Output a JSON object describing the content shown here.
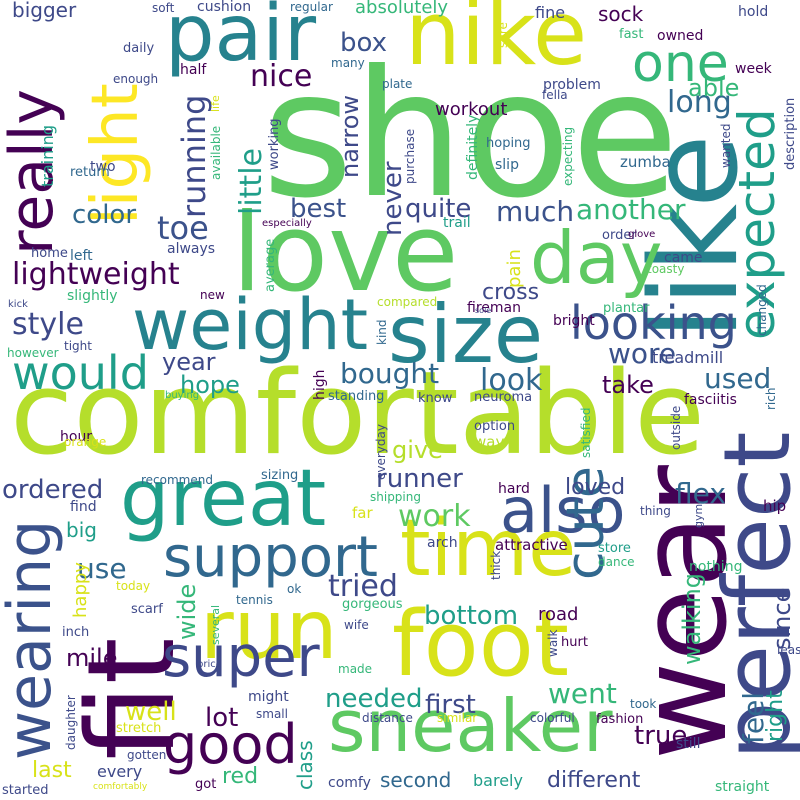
{
  "palette": {
    "dark_purple": "#440154",
    "indigo": "#3b528b",
    "teal": "#21918c",
    "green": "#5ec962",
    "lime": "#addc30",
    "yellow": "#fde725"
  },
  "words": [
    {
      "text": "shoe",
      "color": "#5ec962",
      "weight": 1.0
    },
    {
      "text": "comfortable",
      "color": "#b5de2b",
      "weight": 0.95
    },
    {
      "text": "love",
      "color": "#5ec962",
      "weight": 0.85
    },
    {
      "text": "fit",
      "color": "#440154",
      "weight": 0.8
    },
    {
      "text": "wear",
      "color": "#440154",
      "weight": 0.8
    },
    {
      "text": "like",
      "color": "#26828e",
      "weight": 0.75
    },
    {
      "text": "nike",
      "color": "#d8e219",
      "weight": 0.7
    },
    {
      "text": "pair",
      "color": "#26828e",
      "weight": 0.65
    },
    {
      "text": "run",
      "color": "#d8e219",
      "weight": 0.65
    },
    {
      "text": "foot",
      "color": "#d8e219",
      "weight": 0.65
    },
    {
      "text": "great",
      "color": "#1f9e89",
      "weight": 0.62
    },
    {
      "text": "time",
      "color": "#d8e219",
      "weight": 0.6
    },
    {
      "text": "size",
      "color": "#26828e",
      "weight": 0.6
    },
    {
      "text": "weight",
      "color": "#26828e",
      "weight": 0.58
    },
    {
      "text": "sneaker",
      "color": "#5ec962",
      "weight": 0.6
    },
    {
      "text": "perfect",
      "color": "#3e4989",
      "weight": 0.55
    },
    {
      "text": "light",
      "color": "#fde725",
      "weight": 0.55
    },
    {
      "text": "day",
      "color": "#5ec962",
      "weight": 0.55
    },
    {
      "text": "really",
      "color": "#440154",
      "weight": 0.5
    },
    {
      "text": "wearing",
      "color": "#3b528b",
      "weight": 0.5
    },
    {
      "text": "support",
      "color": "#31688e",
      "weight": 0.48
    },
    {
      "text": "super",
      "color": "#3e4989",
      "weight": 0.48
    },
    {
      "text": "good",
      "color": "#440154",
      "weight": 0.45
    },
    {
      "text": "also",
      "color": "#3b528b",
      "weight": 0.45
    },
    {
      "text": "expected",
      "color": "#1f9e89",
      "weight": 0.45
    },
    {
      "text": "cute",
      "color": "#31688e",
      "weight": 0.42
    },
    {
      "text": "one",
      "color": "#35b779",
      "weight": 0.4
    },
    {
      "text": "looking",
      "color": "#3b528b",
      "weight": 0.4
    },
    {
      "text": "would",
      "color": "#1f9e89",
      "weight": 0.38
    },
    {
      "text": "feel",
      "color": "#31688e",
      "weight": 0.3
    },
    {
      "text": "lightweight",
      "color": "#440154",
      "weight": 0.3
    },
    {
      "text": "little",
      "color": "#1f9e89",
      "weight": 0.3
    },
    {
      "text": "running",
      "color": "#3e4989",
      "weight": 0.3
    },
    {
      "text": "nice",
      "color": "#440154",
      "weight": 0.28
    },
    {
      "text": "much",
      "color": "#3b528b",
      "weight": 0.28
    },
    {
      "text": "another",
      "color": "#35b779",
      "weight": 0.28
    },
    {
      "text": "long",
      "color": "#31688e",
      "weight": 0.28
    },
    {
      "text": "box",
      "color": "#3b528b",
      "weight": 0.26
    },
    {
      "text": "toe",
      "color": "#3b528b",
      "weight": 0.26
    },
    {
      "text": "style",
      "color": "#3e4989",
      "weight": 0.26
    },
    {
      "text": "look",
      "color": "#31688e",
      "weight": 0.26
    },
    {
      "text": "bought",
      "color": "#31688e",
      "weight": 0.26
    },
    {
      "text": "wore",
      "color": "#3b528b",
      "weight": 0.26
    },
    {
      "text": "used",
      "color": "#31688e",
      "weight": 0.26
    },
    {
      "text": "best",
      "color": "#3b528b",
      "weight": 0.24
    },
    {
      "text": "never",
      "color": "#3e4989",
      "weight": 0.24
    },
    {
      "text": "quite",
      "color": "#3e4989",
      "weight": 0.24
    },
    {
      "text": "color",
      "color": "#31688e",
      "weight": 0.24
    },
    {
      "text": "narrow",
      "color": "#3e4989",
      "weight": 0.22
    },
    {
      "text": "cross",
      "color": "#3e4989",
      "weight": 0.22
    },
    {
      "text": "able",
      "color": "#35b779",
      "weight": 0.22
    },
    {
      "text": "take",
      "color": "#440154",
      "weight": 0.22
    },
    {
      "text": "year",
      "color": "#3e4989",
      "weight": 0.22
    },
    {
      "text": "hope",
      "color": "#1f9e89",
      "weight": 0.22
    },
    {
      "text": "runner",
      "color": "#3e4989",
      "weight": 0.22
    },
    {
      "text": "work",
      "color": "#5ec962",
      "weight": 0.24
    },
    {
      "text": "flex",
      "color": "#31688e",
      "weight": 0.22
    },
    {
      "text": "ordered",
      "color": "#3e4989",
      "weight": 0.22
    },
    {
      "text": "loved",
      "color": "#3e4989",
      "weight": 0.2
    },
    {
      "text": "give",
      "color": "#b5de2b",
      "weight": 0.2
    },
    {
      "text": "tried",
      "color": "#3e4989",
      "weight": 0.22
    },
    {
      "text": "use",
      "color": "#31688e",
      "weight": 0.22
    },
    {
      "text": "wide",
      "color": "#35b779",
      "weight": 0.2
    },
    {
      "text": "walking",
      "color": "#35b779",
      "weight": 0.22
    },
    {
      "text": "since",
      "color": "#3e4989",
      "weight": 0.22
    },
    {
      "text": "mile",
      "color": "#440154",
      "weight": 0.2
    },
    {
      "text": "bottom",
      "color": "#1f9e89",
      "weight": 0.22
    },
    {
      "text": "needed",
      "color": "#1f9e89",
      "weight": 0.22
    },
    {
      "text": "first",
      "color": "#3e4989",
      "weight": 0.22
    },
    {
      "text": "went",
      "color": "#35b779",
      "weight": 0.22
    },
    {
      "text": "well",
      "color": "#d8e219",
      "weight": 0.2
    },
    {
      "text": "lot",
      "color": "#440154",
      "weight": 0.2
    },
    {
      "text": "true",
      "color": "#440154",
      "weight": 0.22
    },
    {
      "text": "right",
      "color": "#1f9e89",
      "weight": 0.2
    },
    {
      "text": "class",
      "color": "#1f9e89",
      "weight": 0.18
    },
    {
      "text": "red",
      "color": "#35b779",
      "weight": 0.18
    },
    {
      "text": "second",
      "color": "#31688e",
      "weight": 0.18
    },
    {
      "text": "different",
      "color": "#3e4989",
      "weight": 0.18
    },
    {
      "text": "last",
      "color": "#d8e219",
      "weight": 0.18
    },
    {
      "text": "big",
      "color": "#1f9e89",
      "weight": 0.18
    },
    {
      "text": "happy",
      "color": "#d8e219",
      "weight": 0.16
    },
    {
      "text": "bigger",
      "color": "#3e4989",
      "weight": 0.16
    },
    {
      "text": "absolutely",
      "color": "#35b779",
      "weight": 0.16
    },
    {
      "text": "sock",
      "color": "#440154",
      "weight": 0.16
    },
    {
      "text": "workout",
      "color": "#440154",
      "weight": 0.16
    },
    {
      "text": "pain",
      "color": "#d8e219",
      "weight": 0.16
    },
    {
      "text": "training",
      "color": "#1f9e89",
      "weight": 0.14
    },
    {
      "text": "treadmill",
      "color": "#3e4989",
      "weight": 0.14
    },
    {
      "text": "road",
      "color": "#440154",
      "weight": 0.14
    },
    {
      "text": "barely",
      "color": "#1f9e89",
      "weight": 0.14
    },
    {
      "text": "every",
      "color": "#3e4989",
      "weight": 0.13
    },
    {
      "text": "fine",
      "color": "#3e4989",
      "weight": 0.12
    },
    {
      "text": "hold",
      "color": "#3e4989",
      "weight": 0.11
    },
    {
      "text": "week",
      "color": "#440154",
      "weight": 0.12
    },
    {
      "text": "half",
      "color": "#440154",
      "weight": 0.12
    },
    {
      "text": "soft",
      "color": "#3e4989",
      "weight": 0.1
    },
    {
      "text": "cushion",
      "color": "#3e4989",
      "weight": 0.11
    },
    {
      "text": "regular",
      "color": "#31688e",
      "weight": 0.09
    },
    {
      "text": "daily",
      "color": "#3e4989",
      "weight": 0.1
    },
    {
      "text": "enough",
      "color": "#3e4989",
      "weight": 0.09
    },
    {
      "text": "many",
      "color": "#31688e",
      "weight": 0.09
    },
    {
      "text": "plate",
      "color": "#31688e",
      "weight": 0.09
    },
    {
      "text": "problem",
      "color": "#3e4989",
      "weight": 0.11
    },
    {
      "text": "fella",
      "color": "#3e4989",
      "weight": 0.09
    },
    {
      "text": "fast",
      "color": "#35b779",
      "weight": 0.1
    },
    {
      "text": "owned",
      "color": "#440154",
      "weight": 0.1
    },
    {
      "text": "description",
      "color": "#3e4989",
      "weight": 0.1
    },
    {
      "text": "wanted",
      "color": "#3e4989",
      "weight": 0.09
    },
    {
      "text": "zumba",
      "color": "#31688e",
      "weight": 0.12
    },
    {
      "text": "hoping",
      "color": "#31688e",
      "weight": 0.1
    },
    {
      "text": "slip",
      "color": "#31688e",
      "weight": 0.1
    },
    {
      "text": "expecting",
      "color": "#35b779",
      "weight": 0.09
    },
    {
      "text": "definitely",
      "color": "#35b779",
      "weight": 0.1
    },
    {
      "text": "purchase",
      "color": "#3e4989",
      "weight": 0.1
    },
    {
      "text": "sure",
      "color": "#d8e219",
      "weight": 0.09
    },
    {
      "text": "two",
      "color": "#3e4989",
      "weight": 0.11
    },
    {
      "text": "return",
      "color": "#31688e",
      "weight": 0.1
    },
    {
      "text": "available",
      "color": "#35b779",
      "weight": 0.08
    },
    {
      "text": "life",
      "color": "#d8e219",
      "weight": 0.08
    },
    {
      "text": "working",
      "color": "#3e4989",
      "weight": 0.1
    },
    {
      "text": "especially",
      "color": "#440154",
      "weight": 0.07
    },
    {
      "text": "trail",
      "color": "#1f9e89",
      "weight": 0.1
    },
    {
      "text": "order",
      "color": "#3e4989",
      "weight": 0.1
    },
    {
      "text": "glove",
      "color": "#440154",
      "weight": 0.07
    },
    {
      "text": "came",
      "color": "#3e4989",
      "weight": 0.1
    },
    {
      "text": "toasty",
      "color": "#5ec962",
      "weight": 0.09
    },
    {
      "text": "changed",
      "color": "#31688e",
      "weight": 0.08
    },
    {
      "text": "home",
      "color": "#3e4989",
      "weight": 0.1
    },
    {
      "text": "left",
      "color": "#31688e",
      "weight": 0.1
    },
    {
      "text": "always",
      "color": "#3e4989",
      "weight": 0.1
    },
    {
      "text": "average",
      "color": "#35b779",
      "weight": 0.09
    },
    {
      "text": "slightly",
      "color": "#35b779",
      "weight": 0.11
    },
    {
      "text": "new",
      "color": "#440154",
      "weight": 0.08
    },
    {
      "text": "kick",
      "color": "#3e4989",
      "weight": 0.07
    },
    {
      "text": "compared",
      "color": "#b5de2b",
      "weight": 0.09
    },
    {
      "text": "fireman",
      "color": "#440154",
      "weight": 0.1
    },
    {
      "text": "bright",
      "color": "#440154",
      "weight": 0.1
    },
    {
      "text": "sole",
      "color": "#3e4989",
      "weight": 0.06
    },
    {
      "text": "plantar",
      "color": "#35b779",
      "weight": 0.1
    },
    {
      "text": "tight",
      "color": "#3e4989",
      "weight": 0.09
    },
    {
      "text": "however",
      "color": "#35b779",
      "weight": 0.08
    },
    {
      "text": "kind",
      "color": "#31688e",
      "weight": 0.08
    },
    {
      "text": "high",
      "color": "#440154",
      "weight": 0.09
    },
    {
      "text": "standing",
      "color": "#31688e",
      "weight": 0.09
    },
    {
      "text": "know",
      "color": "#3e4989",
      "weight": 0.09
    },
    {
      "text": "neuroma",
      "color": "#3e4989",
      "weight": 0.09
    },
    {
      "text": "outside",
      "color": "#3e4989",
      "weight": 0.08
    },
    {
      "text": "fasciitis",
      "color": "#440154",
      "weight": 0.1
    },
    {
      "text": "rich",
      "color": "#31688e",
      "weight": 0.09
    },
    {
      "text": "buying",
      "color": "#35b779",
      "weight": 0.07
    },
    {
      "text": "hour",
      "color": "#440154",
      "weight": 0.1
    },
    {
      "text": "orange",
      "color": "#d8e219",
      "weight": 0.09
    },
    {
      "text": "option",
      "color": "#3e4989",
      "weight": 0.09
    },
    {
      "text": "way",
      "color": "#b5de2b",
      "weight": 0.1
    },
    {
      "text": "everyday",
      "color": "#3e4989",
      "weight": 0.08
    },
    {
      "text": "satisfied",
      "color": "#35b779",
      "weight": 0.08
    },
    {
      "text": "recommend",
      "color": "#31688e",
      "weight": 0.09
    },
    {
      "text": "sizing",
      "color": "#31688e",
      "weight": 0.09
    },
    {
      "text": "find",
      "color": "#3e4989",
      "weight": 0.1
    },
    {
      "text": "shipping",
      "color": "#35b779",
      "weight": 0.09
    },
    {
      "text": "hard",
      "color": "#440154",
      "weight": 0.1
    },
    {
      "text": "thing",
      "color": "#3e4989",
      "weight": 0.09
    },
    {
      "text": "hip",
      "color": "#440154",
      "weight": 0.1
    },
    {
      "text": "gym",
      "color": "#3e4989",
      "weight": 0.08
    },
    {
      "text": "far",
      "color": "#d8e219",
      "weight": 0.11
    },
    {
      "text": "arch",
      "color": "#3e4989",
      "weight": 0.1
    },
    {
      "text": "attractive",
      "color": "#440154",
      "weight": 0.11
    },
    {
      "text": "store",
      "color": "#1f9e89",
      "weight": 0.1
    },
    {
      "text": "dance",
      "color": "#35b779",
      "weight": 0.09
    },
    {
      "text": "nothing",
      "color": "#35b779",
      "weight": 0.1
    },
    {
      "text": "thick",
      "color": "#3e4989",
      "weight": 0.08
    },
    {
      "text": "today",
      "color": "#d8e219",
      "weight": 0.08
    },
    {
      "text": "ok",
      "color": "#31688e",
      "weight": 0.08
    },
    {
      "text": "tennis",
      "color": "#31688e",
      "weight": 0.08
    },
    {
      "text": "gorgeous",
      "color": "#35b779",
      "weight": 0.09
    },
    {
      "text": "scarf",
      "color": "#3e4989",
      "weight": 0.09
    },
    {
      "text": "several",
      "color": "#35b779",
      "weight": 0.08
    },
    {
      "text": "inch",
      "color": "#3e4989",
      "weight": 0.09
    },
    {
      "text": "wife",
      "color": "#3e4989",
      "weight": 0.09
    },
    {
      "text": "walk",
      "color": "#3e4989",
      "weight": 0.08
    },
    {
      "text": "hurt",
      "color": "#440154",
      "weight": 0.09
    },
    {
      "text": "least",
      "color": "#3e4989",
      "weight": 0.09
    },
    {
      "text": "made",
      "color": "#35b779",
      "weight": 0.08
    },
    {
      "text": "price",
      "color": "#3e4989",
      "weight": 0.07
    },
    {
      "text": "might",
      "color": "#3e4989",
      "weight": 0.1
    },
    {
      "text": "distance",
      "color": "#3e4989",
      "weight": 0.09
    },
    {
      "text": "similar",
      "color": "#d8e219",
      "weight": 0.08
    },
    {
      "text": "colorful",
      "color": "#3e4989",
      "weight": 0.09
    },
    {
      "text": "fashion",
      "color": "#440154",
      "weight": 0.09
    },
    {
      "text": "took",
      "color": "#31688e",
      "weight": 0.08
    },
    {
      "text": "still",
      "color": "#3e4989",
      "weight": 0.09
    },
    {
      "text": "small",
      "color": "#3e4989",
      "weight": 0.08
    },
    {
      "text": "daughter",
      "color": "#3e4989",
      "weight": 0.09
    },
    {
      "text": "stretch",
      "color": "#d8e219",
      "weight": 0.08
    },
    {
      "text": "gotten",
      "color": "#3e4989",
      "weight": 0.08
    },
    {
      "text": "got",
      "color": "#440154",
      "weight": 0.08
    },
    {
      "text": "comfy",
      "color": "#3e4989",
      "weight": 0.1
    },
    {
      "text": "started",
      "color": "#3e4989",
      "weight": 0.09
    },
    {
      "text": "comfortably",
      "color": "#d8e219",
      "weight": 0.06
    },
    {
      "text": "straight",
      "color": "#35b779",
      "weight": 0.09
    }
  ]
}
